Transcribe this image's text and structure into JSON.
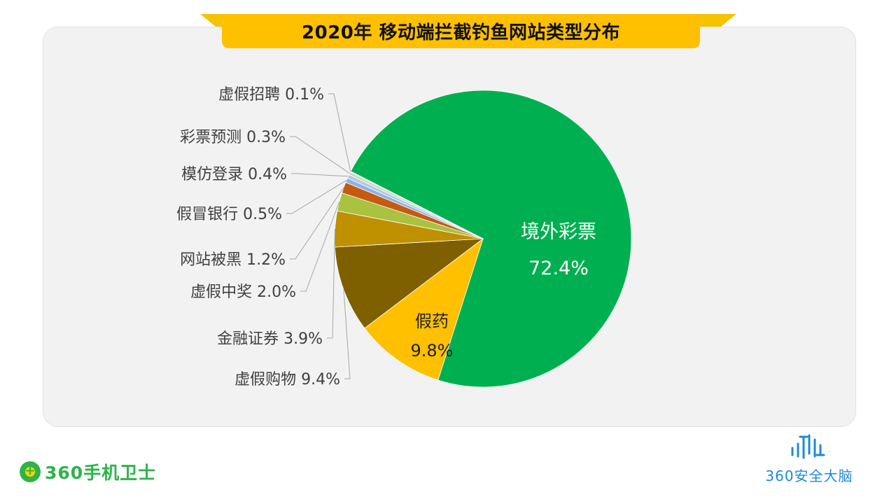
{
  "header": {
    "title": "2020年 移动端拦截钓鱼网站类型分布"
  },
  "chart_data": {
    "type": "pie",
    "title": "2020年 移动端拦截钓鱼网站类型分布",
    "slices": [
      {
        "label": "境外彩票",
        "value": 72.4,
        "display": "72.4%",
        "color": "#00b050"
      },
      {
        "label": "假药",
        "value": 9.8,
        "display": "9.8%",
        "color": "#ffc000"
      },
      {
        "label": "虚假购物",
        "value": 9.4,
        "display": "9.4%",
        "color": "#7f6000"
      },
      {
        "label": "金融证券",
        "value": 3.9,
        "display": "3.9%",
        "color": "#bf9000"
      },
      {
        "label": "虚假中奖",
        "value": 2.0,
        "display": "2.0%",
        "color": "#a9c23f"
      },
      {
        "label": "网站被黑",
        "value": 1.2,
        "display": "1.2%",
        "color": "#c55a11"
      },
      {
        "label": "假冒银行",
        "value": 0.5,
        "display": "0.5%",
        "color": "#8db3e2"
      },
      {
        "label": "模仿登录",
        "value": 0.4,
        "display": "0.4%",
        "color": "#b4c7e7"
      },
      {
        "label": "彩票预测",
        "value": 0.3,
        "display": "0.3%",
        "color": "#c6dfb4"
      },
      {
        "label": "虚假招聘",
        "value": 0.1,
        "display": "0.1%",
        "color": "#d9d9d9"
      }
    ]
  },
  "branding": {
    "left_logo_text": "360手机卫士",
    "right_logo_text": "360安全大脑",
    "left_logo_color": "#2db34a",
    "right_logo_color": "#1e8ad6"
  }
}
